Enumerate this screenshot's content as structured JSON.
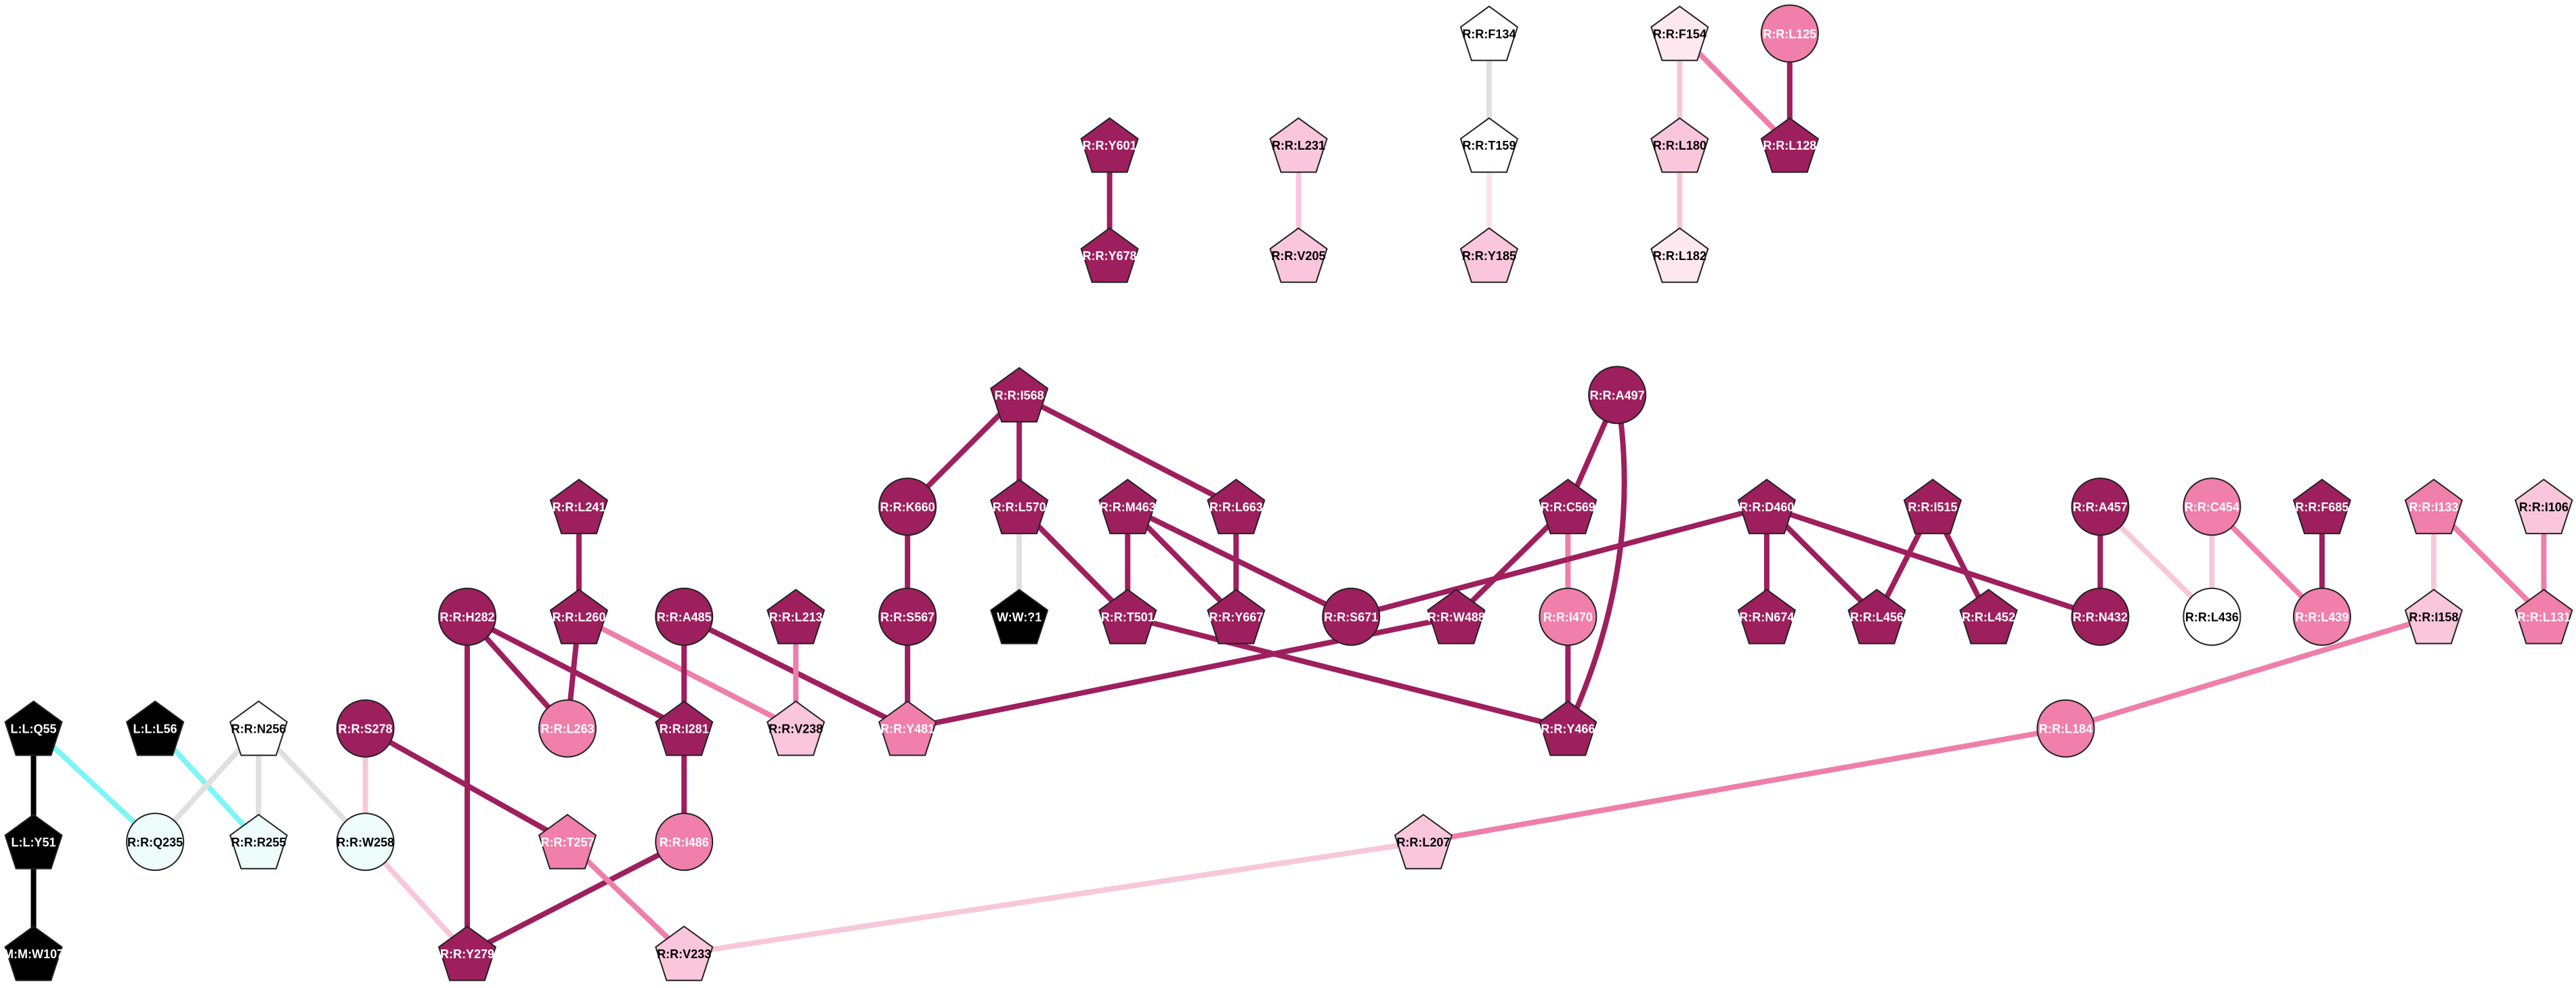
{
  "nodes": [
    {
      "label": "L:L:Q55"
    },
    {
      "label": "L:L:Y51"
    },
    {
      "label": "M:M:W107"
    },
    {
      "label": "L:L:L56"
    },
    {
      "label": "R:R:N256"
    },
    {
      "label": "R:R:Q235"
    },
    {
      "label": "R:R:R255"
    },
    {
      "label": "R:R:S278"
    },
    {
      "label": "R:R:W258"
    },
    {
      "label": "R:R:Y279"
    },
    {
      "label": "R:R:H282"
    },
    {
      "label": "R:R:L241"
    },
    {
      "label": "R:R:L260"
    },
    {
      "label": "R:R:L263"
    },
    {
      "label": "R:R:T257"
    },
    {
      "label": "R:R:A485"
    },
    {
      "label": "R:R:I281"
    },
    {
      "label": "R:R:I486"
    },
    {
      "label": "R:R:V233"
    },
    {
      "label": "R:R:L213"
    },
    {
      "label": "R:R:V238"
    },
    {
      "label": "R:R:K660"
    },
    {
      "label": "R:R:S567"
    },
    {
      "label": "R:R:Y481"
    },
    {
      "label": "R:R:I568"
    },
    {
      "label": "R:R:L570"
    },
    {
      "label": "W:W:?1"
    },
    {
      "label": "R:R:M463"
    },
    {
      "label": "R:R:T501"
    },
    {
      "label": "R:R:L663"
    },
    {
      "label": "R:R:Y667"
    },
    {
      "label": "R:R:S671"
    },
    {
      "label": "R:R:A497"
    },
    {
      "label": "R:R:C569"
    },
    {
      "label": "R:R:W488"
    },
    {
      "label": "R:R:I470"
    },
    {
      "label": "R:R:Y466"
    },
    {
      "label": "R:R:D460"
    },
    {
      "label": "R:R:N674"
    },
    {
      "label": "R:R:L456"
    },
    {
      "label": "R:R:I515"
    },
    {
      "label": "R:R:L452"
    },
    {
      "label": "R:R:A457"
    },
    {
      "label": "R:R:N432"
    },
    {
      "label": "R:R:C454"
    },
    {
      "label": "R:R:L436"
    },
    {
      "label": "R:R:F685"
    },
    {
      "label": "R:R:L439"
    },
    {
      "label": "R:R:I133"
    },
    {
      "label": "R:R:I158"
    },
    {
      "label": "R:R:I106"
    },
    {
      "label": "R:R:L131"
    },
    {
      "label": "R:R:L184"
    },
    {
      "label": "R:R:L207"
    },
    {
      "label": "R:R:Y601"
    },
    {
      "label": "R:R:Y678"
    },
    {
      "label": "R:R:L231"
    },
    {
      "label": "R:R:V205"
    },
    {
      "label": "R:R:F134"
    },
    {
      "label": "R:R:T159"
    },
    {
      "label": "R:R:Y185"
    },
    {
      "label": "R:R:F154"
    },
    {
      "label": "R:R:L180"
    },
    {
      "label": "R:R:L182"
    },
    {
      "label": "R:R:L125"
    },
    {
      "label": "R:R:L128"
    }
  ]
}
